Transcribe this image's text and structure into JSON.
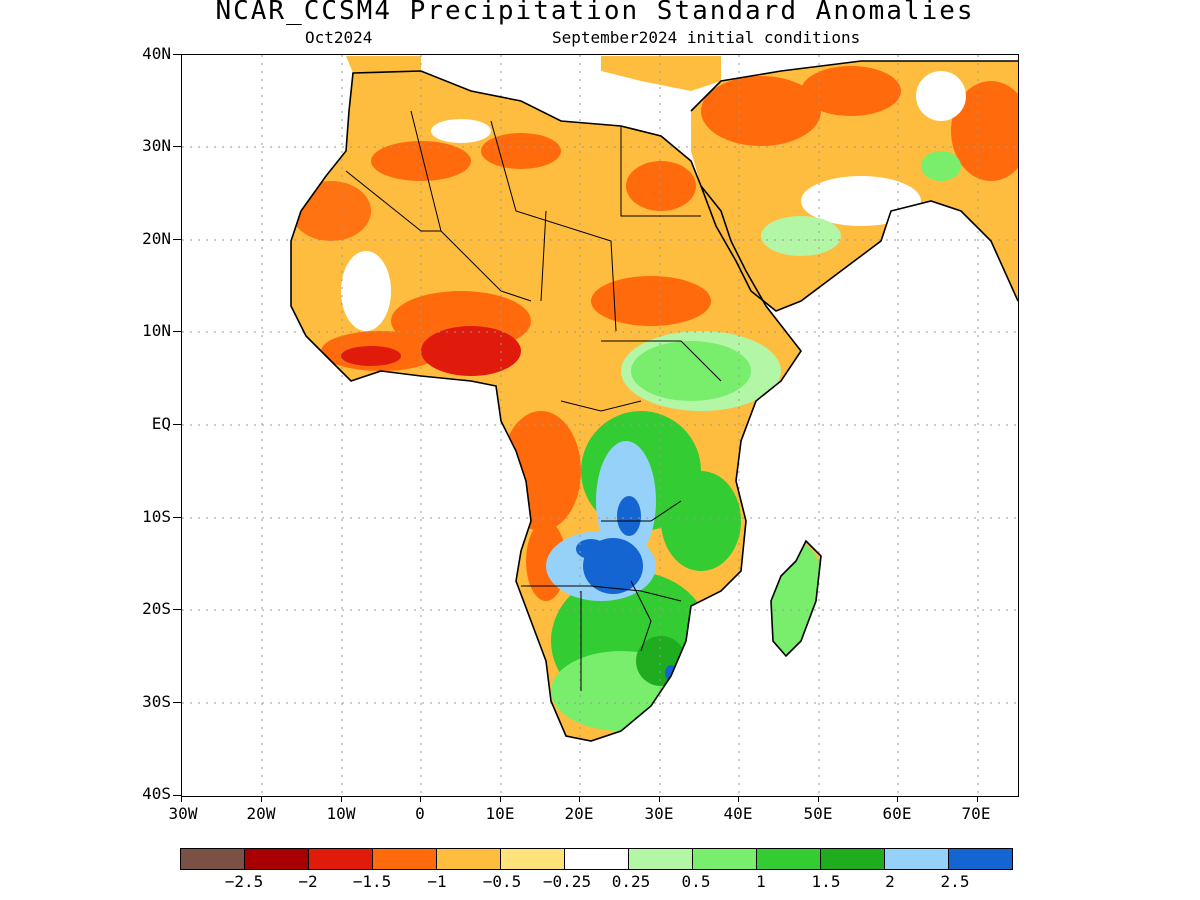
{
  "title": "NCAR_CCSM4 Precipitation Standard Anomalies",
  "subtitle_left": "Oct2024",
  "subtitle_right": "September2024 initial conditions",
  "y_axis_labels": [
    "40N",
    "30N",
    "20N",
    "10N",
    "EQ",
    "10S",
    "20S",
    "30S",
    "40S"
  ],
  "x_axis_labels": [
    "30W",
    "20W",
    "10W",
    "0",
    "10E",
    "20E",
    "30E",
    "40E",
    "50E",
    "60E",
    "70E"
  ],
  "colorbar": {
    "colors": [
      "#7b5145",
      "#a80000",
      "#e01b0c",
      "#ff6a0d",
      "#ffbd3f",
      "#ffe37a",
      "#ffffff",
      "#b3f6a6",
      "#78ee6c",
      "#33cc33",
      "#1fad1f",
      "#96d1fa",
      "#1464d2"
    ],
    "labels": [
      "−2.5",
      "−2",
      "−1.5",
      "−1",
      "−0.5",
      "−0.25",
      "0.25",
      "0.5",
      "1",
      "1.5",
      "2",
      "2.5"
    ]
  }
}
